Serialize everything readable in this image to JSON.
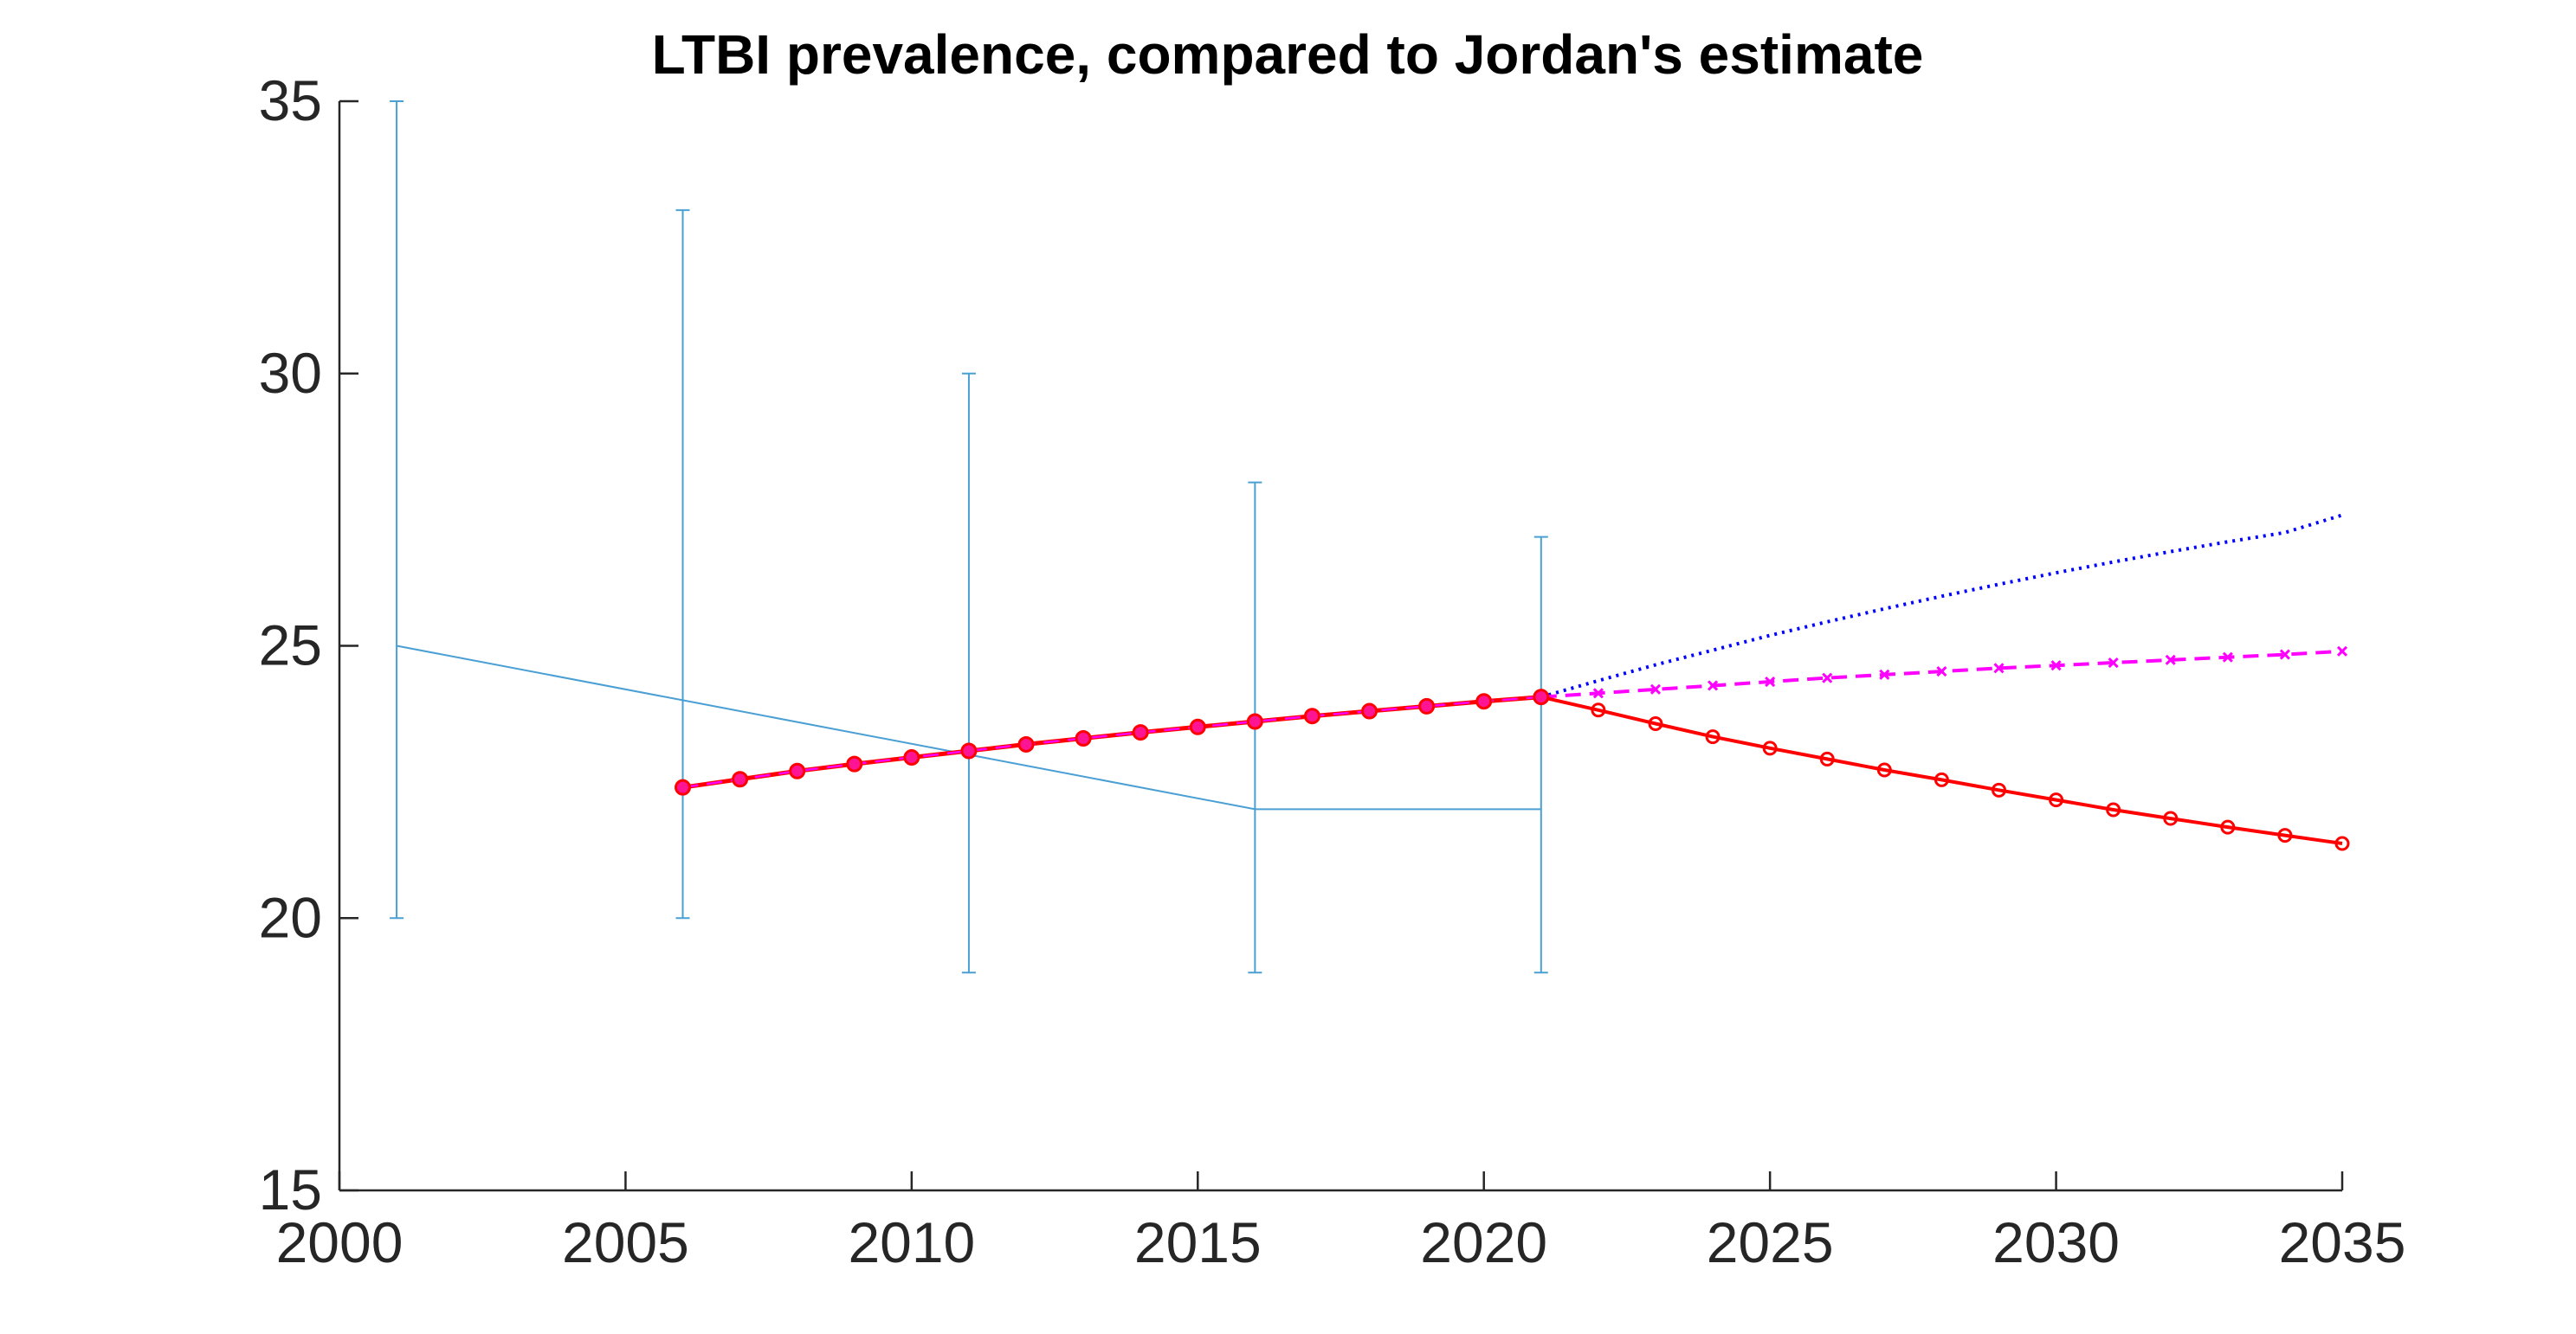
{
  "chart_data": {
    "type": "line",
    "title": "LTBI prevalence, compared to Jordan's estimate",
    "xlabel": "",
    "ylabel": "",
    "xlim": [
      2000,
      2035
    ],
    "ylim": [
      15,
      35
    ],
    "xticks": [
      2000,
      2005,
      2010,
      2015,
      2020,
      2025,
      2030,
      2035
    ],
    "yticks": [
      15,
      20,
      25,
      30,
      35
    ],
    "grid": false,
    "legend": "none",
    "colors": {
      "estimate": "#4a9fd4",
      "scenario_high": "#0000ff",
      "scenario_mid": "#ff00ff",
      "scenario_low": "#ff0000",
      "historical_marker": "#ff1493",
      "axis": "#262626"
    },
    "estimate": {
      "x": [
        2001,
        2006,
        2011,
        2016,
        2021
      ],
      "y": [
        25,
        24,
        23,
        22,
        22
      ],
      "lower": [
        20,
        20,
        19,
        19,
        19
      ],
      "upper": [
        35,
        33,
        30,
        28,
        27
      ]
    },
    "historical": {
      "x": [
        2006,
        2007,
        2008,
        2009,
        2010,
        2011,
        2012,
        2013,
        2014,
        2015,
        2016,
        2017,
        2018,
        2019,
        2020,
        2021
      ],
      "y": [
        22.4,
        22.55,
        22.7,
        22.83,
        22.95,
        23.07,
        23.19,
        23.3,
        23.41,
        23.51,
        23.61,
        23.71,
        23.8,
        23.89,
        23.98,
        24.06
      ]
    },
    "series": [
      {
        "key": "high",
        "style": "dotted",
        "marker": "none",
        "x": [
          2021,
          2022,
          2023,
          2024,
          2025,
          2026,
          2027,
          2028,
          2029,
          2030,
          2031,
          2032,
          2033,
          2034,
          2035
        ],
        "y": [
          24.06,
          24.36,
          24.65,
          24.92,
          25.19,
          25.44,
          25.68,
          25.91,
          26.13,
          26.34,
          26.54,
          26.73,
          26.91,
          27.08,
          27.4
        ]
      },
      {
        "key": "mid",
        "style": "dashed",
        "marker": "x",
        "x": [
          2021,
          2022,
          2023,
          2024,
          2025,
          2026,
          2027,
          2028,
          2029,
          2030,
          2031,
          2032,
          2033,
          2034,
          2035
        ],
        "y": [
          24.06,
          24.13,
          24.2,
          24.27,
          24.34,
          24.41,
          24.47,
          24.53,
          24.59,
          24.64,
          24.69,
          24.74,
          24.79,
          24.84,
          24.9
        ]
      },
      {
        "key": "low",
        "style": "solid",
        "marker": "circle",
        "x": [
          2021,
          2022,
          2023,
          2024,
          2025,
          2026,
          2027,
          2028,
          2029,
          2030,
          2031,
          2032,
          2033,
          2034,
          2035
        ],
        "y": [
          24.06,
          23.82,
          23.57,
          23.33,
          23.12,
          22.92,
          22.72,
          22.54,
          22.35,
          22.17,
          21.99,
          21.83,
          21.67,
          21.52,
          21.37
        ]
      }
    ]
  }
}
